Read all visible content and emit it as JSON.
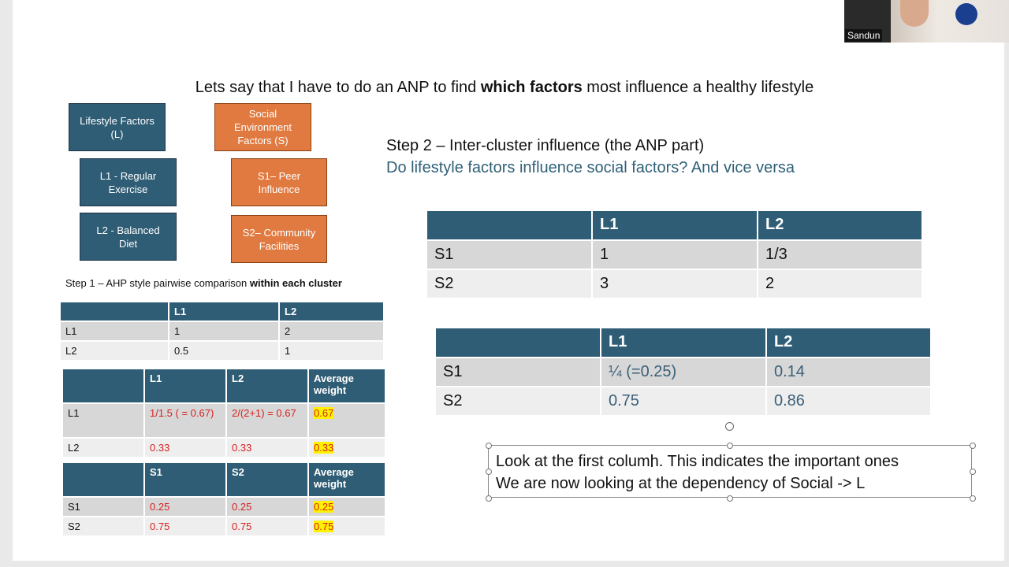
{
  "title": {
    "pre": "Lets say that I have to do an ANP to find ",
    "bold": "which factors",
    "post": " most influence a healthy lifestyle"
  },
  "clusters": {
    "lifestyle": "Lifestyle Factors (L)",
    "social": "Social Environment Factors (S)",
    "l1": "L1 - Regular Exercise",
    "l2": "L2 - Balanced Diet",
    "s1": "S1– Peer Influence",
    "s2": "S2– Community Facilities"
  },
  "step1": {
    "pre": "Step 1 – AHP style pairwise comparison ",
    "bold": "within each cluster"
  },
  "t1": {
    "h0": "",
    "h1": "L1",
    "h2": "L2",
    "rows": [
      [
        "L1",
        "1",
        "2"
      ],
      [
        "L2",
        "0.5",
        "1"
      ]
    ]
  },
  "t2": {
    "h0": "",
    "h1": "L1",
    "h2": "L2",
    "h3": "Average weight",
    "rows": [
      [
        "L1",
        "1/1.5 ( = 0.67)",
        "2/(2+1) = 0.67",
        "0.67"
      ],
      [
        "L2",
        "0.33",
        "0.33",
        "0.33"
      ]
    ]
  },
  "t3": {
    "h0": "",
    "h1": "S1",
    "h2": "S2",
    "h3": "Average weight",
    "rows": [
      [
        "S1",
        "0.25",
        "0.25",
        "0.25"
      ],
      [
        "S2",
        "0.75",
        "0.75",
        "0.75"
      ]
    ]
  },
  "step2": {
    "heading": "Step 2 – Inter-cluster influence (the ANP part)",
    "question": "Do lifestyle factors influence social factors? And vice versa"
  },
  "t4": {
    "h0": "",
    "h1": "L1",
    "h2": "L2",
    "rows": [
      [
        "S1",
        "1",
        "1/3"
      ],
      [
        "S2",
        "3",
        "2"
      ]
    ]
  },
  "t5": {
    "h0": "",
    "h1": "L1",
    "h2": "L2",
    "rows": [
      [
        "S1",
        "¼ (=0.25)",
        "0.14"
      ],
      [
        "S2",
        "0.75",
        "0.86"
      ]
    ]
  },
  "note": {
    "line1": "Look at the first column. This indicates the important ones",
    "line2": "We are now looking at the dependency of Social -> L"
  },
  "webcam": {
    "name": "Sandun"
  }
}
